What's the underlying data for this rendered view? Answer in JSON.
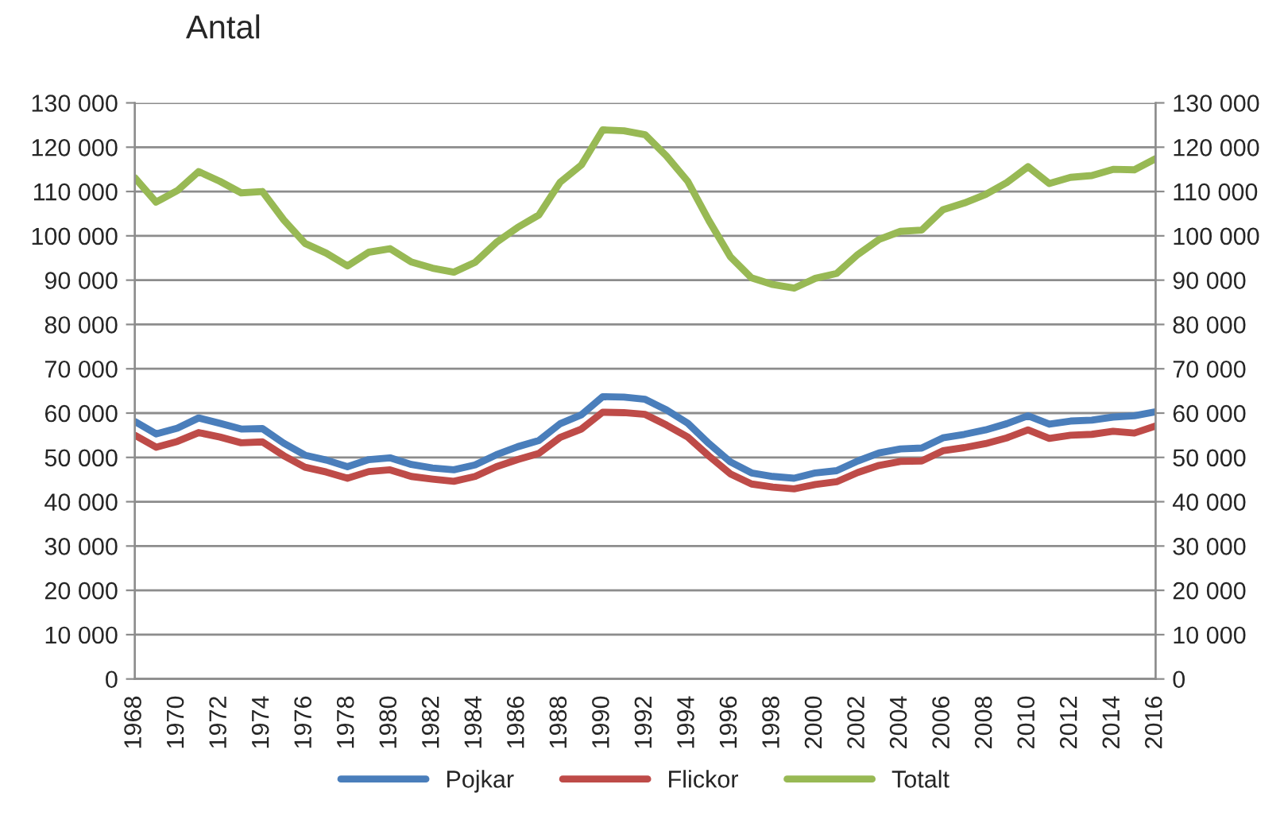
{
  "chart_data": {
    "type": "line",
    "ylabel": "Antal",
    "x": [
      1968,
      1969,
      1970,
      1971,
      1972,
      1973,
      1974,
      1975,
      1976,
      1977,
      1978,
      1979,
      1980,
      1981,
      1982,
      1983,
      1984,
      1985,
      1986,
      1987,
      1988,
      1989,
      1990,
      1991,
      1992,
      1993,
      1994,
      1995,
      1996,
      1997,
      1998,
      1999,
      2000,
      2001,
      2002,
      2003,
      2004,
      2005,
      2006,
      2007,
      2008,
      2009,
      2010,
      2011,
      2012,
      2013,
      2014,
      2015,
      2016
    ],
    "series": [
      {
        "name": "Pojkar",
        "color": "#4a7ebb",
        "values": [
          58100,
          55300,
          56600,
          58900,
          57700,
          56400,
          56500,
          53200,
          50500,
          49400,
          47900,
          49500,
          49900,
          48400,
          47600,
          47200,
          48300,
          50600,
          52400,
          53800,
          57600,
          59600,
          63700,
          63600,
          63100,
          60700,
          57700,
          53100,
          49000,
          46500,
          45700,
          45300,
          46500,
          47000,
          49200,
          51000,
          51900,
          52100,
          54400,
          55200,
          56200,
          57600,
          59400,
          57500,
          58200,
          58400,
          59100,
          59400,
          60300
        ]
      },
      {
        "name": "Flickor",
        "color": "#be4b48",
        "values": [
          55000,
          52300,
          53600,
          55600,
          54600,
          53300,
          53500,
          50400,
          47800,
          46700,
          45300,
          46800,
          47200,
          45700,
          45100,
          44600,
          45700,
          47900,
          49500,
          50900,
          54500,
          56400,
          60200,
          60100,
          59700,
          57300,
          54600,
          50300,
          46300,
          44000,
          43300,
          42900,
          43900,
          44500,
          46600,
          48200,
          49100,
          49200,
          51500,
          52200,
          53100,
          54400,
          56200,
          54300,
          55000,
          55200,
          55900,
          55500,
          57100
        ]
      },
      {
        "name": "Totalt",
        "color": "#98b954",
        "values": [
          113100,
          107600,
          110200,
          114500,
          112300,
          109700,
          110000,
          103600,
          98300,
          96100,
          93200,
          96300,
          97100,
          94100,
          92700,
          91800,
          94000,
          98500,
          101900,
          104700,
          112100,
          116000,
          123900,
          123700,
          122800,
          118000,
          112300,
          103400,
          95300,
          90500,
          89000,
          88200,
          90400,
          91500,
          95800,
          99200,
          101000,
          101300,
          105900,
          107400,
          109300,
          112000,
          115600,
          111800,
          113200,
          113600,
          115000,
          114900,
          117400
        ]
      }
    ],
    "xlim": [
      1968,
      2016
    ],
    "xticks": [
      1968,
      1970,
      1972,
      1974,
      1976,
      1978,
      1980,
      1982,
      1984,
      1986,
      1988,
      1990,
      1992,
      1994,
      1996,
      1998,
      2000,
      2002,
      2004,
      2006,
      2008,
      2010,
      2012,
      2014,
      2016
    ],
    "ylim": [
      0,
      130000
    ],
    "yticks": [
      0,
      {
        "value": 10000,
        "label": "10 000"
      },
      {
        "value": 20000,
        "label": "20 000"
      },
      {
        "value": 30000,
        "label": "30 000"
      },
      {
        "value": 40000,
        "label": "40 000"
      },
      {
        "value": 50000,
        "label": "50 000"
      },
      {
        "value": 60000,
        "label": "60 000"
      },
      {
        "value": 70000,
        "label": "70 000"
      },
      {
        "value": 80000,
        "label": "80 000"
      },
      {
        "value": 90000,
        "label": "90 000"
      },
      {
        "value": 100000,
        "label": "100 000"
      },
      {
        "value": 110000,
        "label": "110 000"
      },
      {
        "value": 120000,
        "label": "120 000"
      },
      {
        "value": 130000,
        "label": "130 000"
      }
    ],
    "y2lim": [
      0,
      130000
    ],
    "y2ticks": [
      0,
      {
        "value": 10000,
        "label": "10 000"
      },
      {
        "value": 20000,
        "label": "20 000"
      },
      {
        "value": 30000,
        "label": "30 000"
      },
      {
        "value": 40000,
        "label": "40 000"
      },
      {
        "value": 50000,
        "label": "50 000"
      },
      {
        "value": 60000,
        "label": "60 000"
      },
      {
        "value": 70000,
        "label": "70 000"
      },
      {
        "value": 80000,
        "label": "80 000"
      },
      {
        "value": 90000,
        "label": "90 000"
      },
      {
        "value": 100000,
        "label": "100 000"
      },
      {
        "value": 110000,
        "label": "110 000"
      },
      {
        "value": 120000,
        "label": "120 000"
      },
      {
        "value": 130000,
        "label": "130 000"
      }
    ],
    "grid": "y",
    "legend": "bottom",
    "marker": "none",
    "line_style": "solid"
  }
}
